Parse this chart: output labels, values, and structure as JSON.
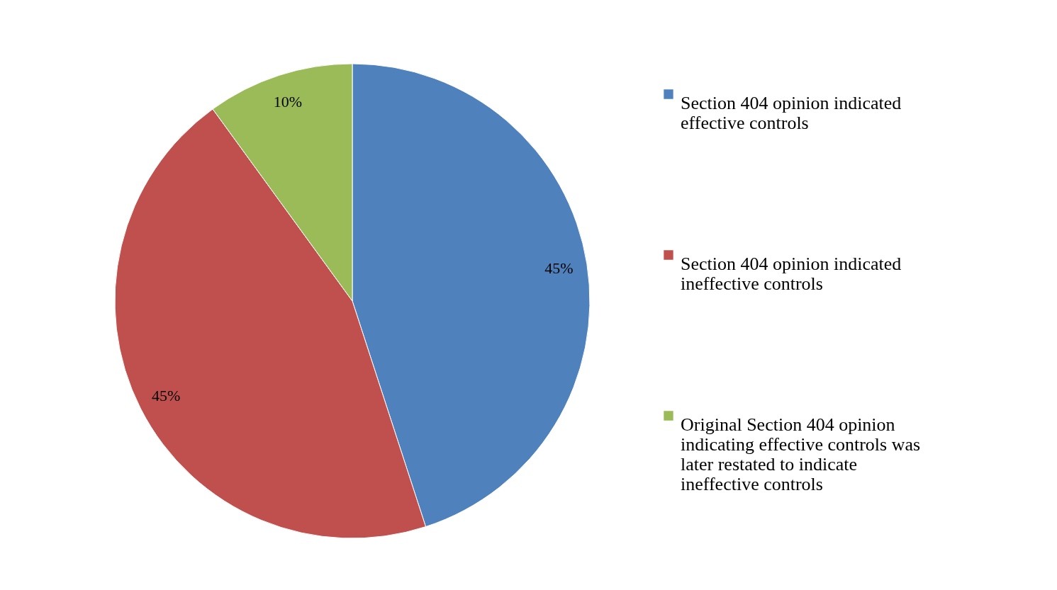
{
  "chart_data": {
    "type": "pie",
    "categories": [
      "Section 404 opinion indicated effective controls",
      "Section 404 opinion indicated ineffective controls",
      "Original Section 404 opinion indicating effective controls was later restated to indicate ineffective controls"
    ],
    "values": [
      45,
      45,
      10
    ],
    "colors": [
      "#4f81bd",
      "#c0504d",
      "#9bbb59"
    ],
    "value_labels": [
      "45%",
      "45%",
      "10%"
    ],
    "legend": "right"
  }
}
